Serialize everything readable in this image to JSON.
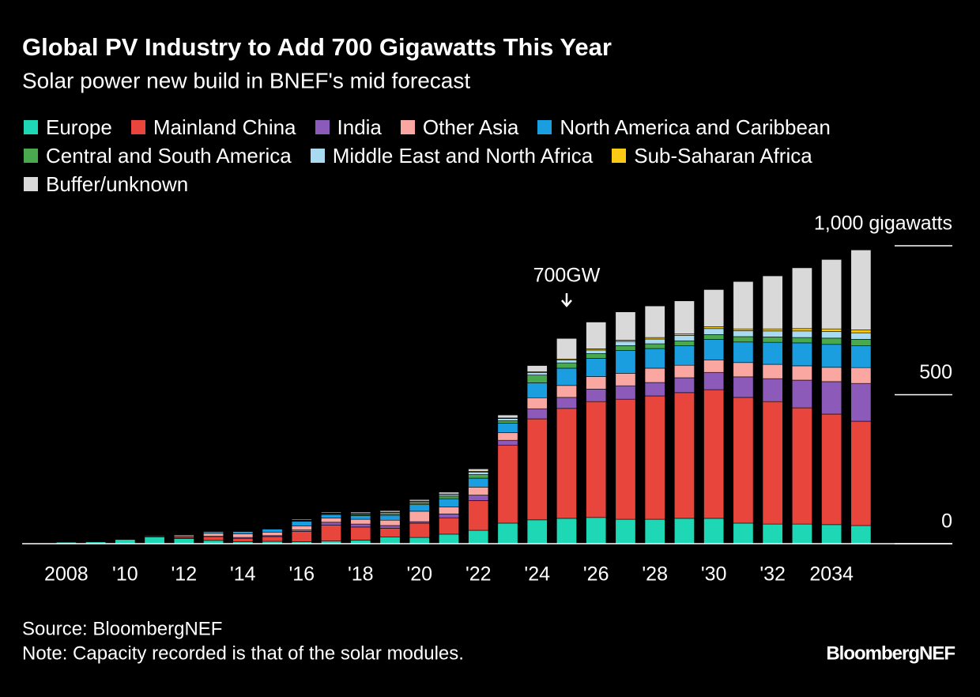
{
  "chart_data": {
    "type": "stacked_bar",
    "title": "Global PV Industry to Add 700 Gigawatts This Year",
    "subtitle": "Solar power new build in BNEF's mid forecast",
    "annotation": "700GW",
    "source": "Source: BloombergNEF",
    "note": "Note: Capacity recorded is that of the solar modules.",
    "branding": "BloombergNEF",
    "categories": [
      null,
      "2008",
      null,
      "'10",
      null,
      "'12",
      null,
      "'14",
      null,
      "'16",
      null,
      "'18",
      null,
      "'20",
      null,
      "'22",
      null,
      "'24",
      null,
      "'26",
      null,
      "'28",
      null,
      "'30",
      null,
      "'32",
      null,
      "2034",
      null
    ],
    "series": [
      {
        "name": "Europe",
        "color": "#1ed8b5",
        "values": [
          2,
          5,
          6,
          14,
          22,
          17,
          11,
          7,
          8,
          7,
          9,
          12,
          22,
          21,
          32,
          45,
          69,
          80,
          85,
          88,
          82,
          82,
          85,
          85,
          69,
          66,
          66,
          64,
          61
        ]
      },
      {
        "name": "Mainland China",
        "color": "#e8453c",
        "values": [
          0,
          0,
          1,
          1,
          3,
          4,
          13,
          11,
          16,
          34,
          53,
          44,
          30,
          48,
          55,
          100,
          262,
          339,
          369,
          389,
          403,
          414,
          422,
          432,
          422,
          411,
          390,
          371,
          350
        ]
      },
      {
        "name": "India",
        "color": "#8c5ab8",
        "values": [
          0,
          0,
          0,
          0,
          0,
          1,
          1,
          3,
          3,
          5,
          10,
          10,
          9,
          5,
          13,
          18,
          16,
          34,
          37,
          42,
          45,
          45,
          50,
          58,
          69,
          77,
          93,
          109,
          127
        ]
      },
      {
        "name": "Other Asia",
        "color": "#f9a7a0",
        "values": [
          0,
          1,
          0,
          1,
          2,
          4,
          10,
          12,
          12,
          14,
          14,
          16,
          18,
          35,
          23,
          27,
          26,
          37,
          40,
          42,
          42,
          48,
          42,
          42,
          48,
          48,
          48,
          48,
          53
        ]
      },
      {
        "name": "North America and Caribbean",
        "color": "#1a9ee0",
        "values": [
          0,
          0,
          0,
          1,
          2,
          4,
          6,
          8,
          10,
          15,
          12,
          12,
          16,
          22,
          28,
          30,
          32,
          50,
          58,
          61,
          77,
          66,
          66,
          69,
          69,
          74,
          77,
          77,
          74
        ]
      },
      {
        "name": "Central and South America",
        "color": "#4aa84f",
        "values": [
          0,
          0,
          0,
          0,
          0,
          0,
          0,
          0,
          1,
          1,
          2,
          3,
          5,
          6,
          8,
          12,
          8,
          26,
          18,
          16,
          16,
          16,
          16,
          16,
          18,
          18,
          18,
          21,
          21
        ]
      },
      {
        "name": "Middle East and North Africa",
        "color": "#a8daf2",
        "values": [
          0,
          0,
          0,
          0,
          0,
          0,
          1,
          1,
          1,
          2,
          2,
          3,
          4,
          4,
          5,
          8,
          7,
          8,
          10,
          12,
          14,
          16,
          18,
          20,
          20,
          20,
          22,
          22,
          22
        ]
      },
      {
        "name": "Sub-Saharan Africa",
        "color": "#f9c913",
        "values": [
          0,
          0,
          0,
          0,
          0,
          0,
          0,
          1,
          1,
          1,
          1,
          2,
          2,
          2,
          3,
          3,
          2,
          3,
          3,
          4,
          4,
          5,
          5,
          6,
          6,
          7,
          8,
          9,
          10
        ]
      },
      {
        "name": "Buffer/unknown",
        "color": "#d9d9d9",
        "values": [
          0,
          0,
          0,
          0,
          0,
          0,
          1,
          1,
          1,
          3,
          3,
          4,
          5,
          5,
          6,
          8,
          10,
          21,
          69,
          90,
          95,
          106,
          111,
          125,
          159,
          178,
          204,
          233,
          268
        ]
      }
    ],
    "ylim": [
      0,
      1000
    ],
    "yticks": [
      0,
      500,
      {
        "value": 1000,
        "label": "1,000 gigawatts"
      }
    ]
  }
}
